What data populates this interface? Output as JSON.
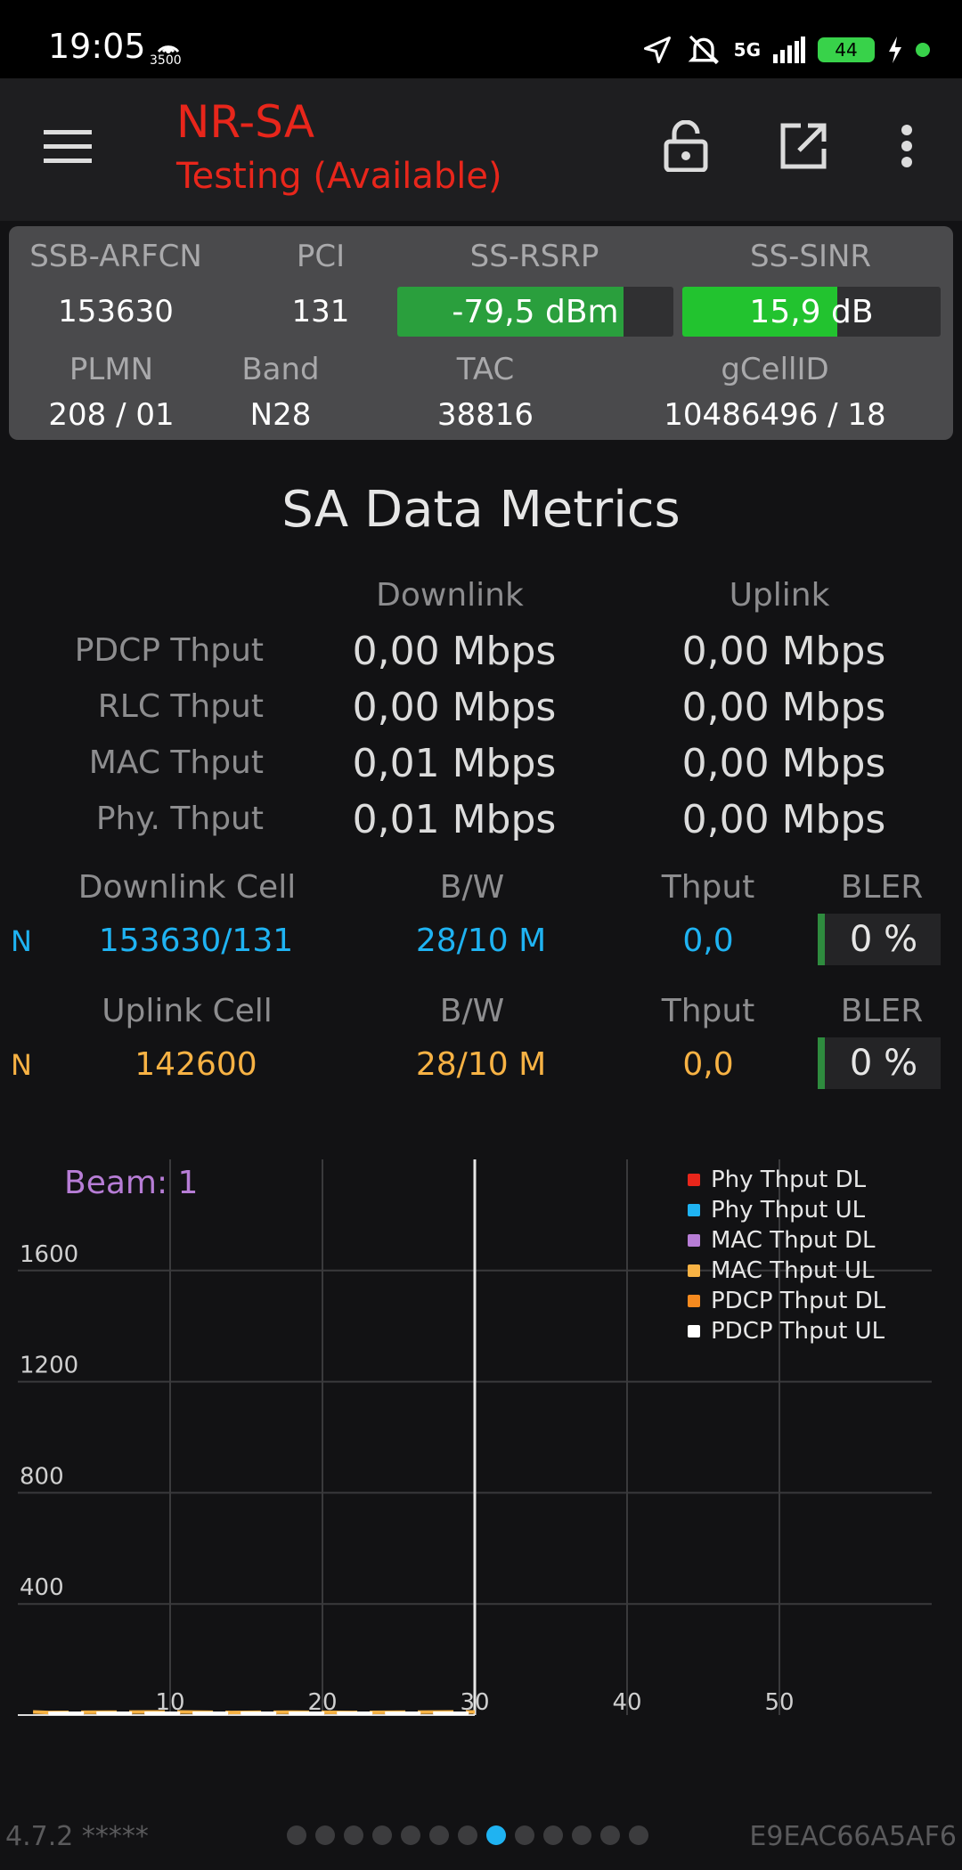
{
  "status_bar": {
    "time": "19:05",
    "hotspot_label": "3500",
    "network": "5G",
    "battery": "44"
  },
  "app": {
    "title": "NR-SA",
    "subtitle": "Testing (Available)"
  },
  "panel": {
    "headers1": [
      "SSB-ARFCN",
      "PCI",
      "SS-RSRP",
      "SS-SINR"
    ],
    "arfcn": "153630",
    "pci": "131",
    "rsrp": {
      "text": "-79,5 dBm",
      "level": 0.82,
      "color": "#2a9f3d"
    },
    "sinr": {
      "text": "15,9 dB",
      "level": 0.6,
      "color": "#22c32f"
    },
    "headers2": [
      "PLMN",
      "Band",
      "TAC",
      "gCellID"
    ],
    "plmn": "208 / 01",
    "band": "N28",
    "tac": "38816",
    "gcellid": "10486496 / 18"
  },
  "metrics": {
    "title": "SA Data Metrics",
    "col_downlink": "Downlink",
    "col_uplink": "Uplink",
    "rows": [
      {
        "label": "PDCP Thput",
        "dl": "0,00 Mbps",
        "ul": "0,00 Mbps"
      },
      {
        "label": "RLC Thput",
        "dl": "0,00 Mbps",
        "ul": "0,00 Mbps"
      },
      {
        "label": "MAC Thput",
        "dl": "0,01 Mbps",
        "ul": "0,00 Mbps"
      },
      {
        "label": "Phy. Thput",
        "dl": "0,01 Mbps",
        "ul": "0,00 Mbps"
      }
    ]
  },
  "downlink_cell": {
    "headers": [
      "Downlink Cell",
      "B/W",
      "Thput",
      "BLER"
    ],
    "tag": "N",
    "cell": "153630/131",
    "bw": "28/10 M",
    "thput": "0,0",
    "bler": "0 %"
  },
  "uplink_cell": {
    "headers": [
      "Uplink Cell",
      "B/W",
      "Thput",
      "BLER"
    ],
    "tag": "N",
    "cell": "142600",
    "bw": "28/10 M",
    "thput": "0,0",
    "bler": "0 %"
  },
  "chart_data": {
    "type": "line",
    "annotation": "Beam: 1",
    "x_ticks": [
      10,
      20,
      30,
      40,
      50
    ],
    "y_ticks": [
      400,
      800,
      1200,
      1600
    ],
    "xlim": [
      0,
      60
    ],
    "ylim": [
      0,
      2000
    ],
    "grid": true,
    "legend_position": "top-right",
    "cursor_x": 30,
    "series": [
      {
        "name": "Phy Thput DL",
        "color": "#e8261b",
        "x": [
          2,
          6,
          10,
          14,
          18,
          22,
          26,
          30
        ],
        "y": [
          0,
          0,
          0,
          0,
          0,
          0,
          0,
          0
        ]
      },
      {
        "name": "Phy Thput UL",
        "color": "#1fb3f2",
        "x": [
          2,
          6,
          10,
          14,
          18,
          22,
          26,
          30
        ],
        "y": [
          0,
          0,
          0,
          0,
          0,
          0,
          0,
          0
        ]
      },
      {
        "name": "MAC Thput DL",
        "color": "#b77dd6",
        "x": [
          2,
          6,
          10,
          14,
          18,
          22,
          26,
          30
        ],
        "y": [
          0,
          0,
          0,
          0,
          0,
          0,
          0,
          0
        ]
      },
      {
        "name": "MAC Thput UL",
        "color": "#f7b244",
        "x": [
          1,
          2,
          6,
          10,
          14,
          18,
          22,
          26,
          30
        ],
        "y": [
          5,
          3,
          4,
          5,
          3,
          4,
          3,
          4,
          5
        ]
      },
      {
        "name": "PDCP Thput DL",
        "color": "#f58a1f",
        "x": [
          2,
          6,
          10,
          14,
          18,
          22,
          26,
          30
        ],
        "y": [
          0,
          0,
          0,
          0,
          0,
          0,
          0,
          0
        ]
      },
      {
        "name": "PDCP Thput UL",
        "color": "#ffffff",
        "x": [
          2,
          6,
          10,
          14,
          18,
          22,
          26,
          30
        ],
        "y": [
          0,
          0,
          0,
          0,
          0,
          0,
          0,
          0
        ]
      }
    ]
  },
  "footer": {
    "version": "4.7.2 *****",
    "device_id": "E9EAC66A5AF6",
    "page_count": 13,
    "active_page": 7
  }
}
